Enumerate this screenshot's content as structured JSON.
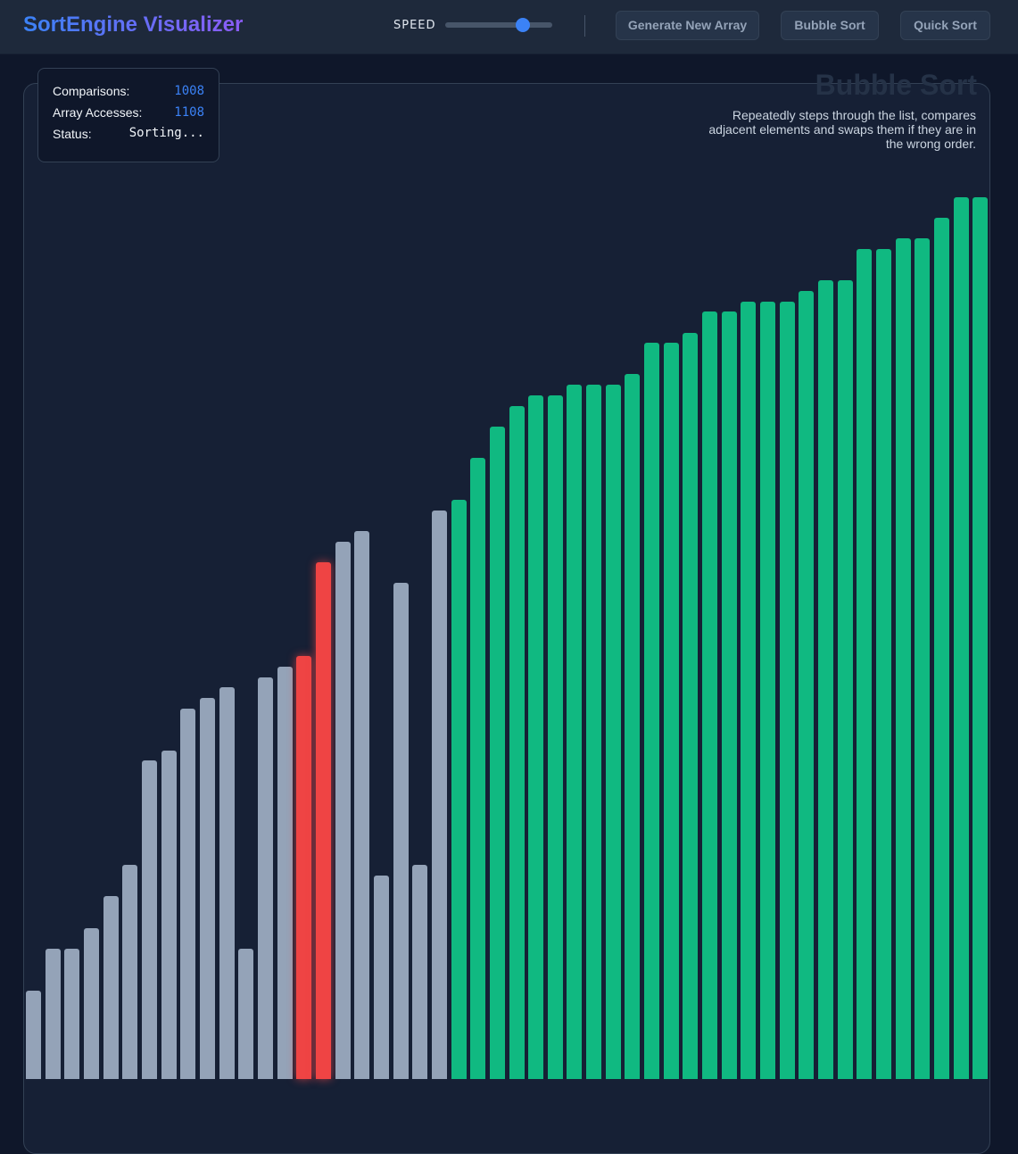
{
  "header": {
    "title": "SortEngine Visualizer",
    "speed_label": "SPEED",
    "speed_value": 0.72,
    "buttons": {
      "generate": "Generate New Array",
      "bubble": "Bubble Sort",
      "quick": "Quick Sort"
    }
  },
  "stats": {
    "comparisons_label": "Comparisons:",
    "comparisons": "1008",
    "accesses_label": "Array Accesses:",
    "accesses": "1108",
    "status_label": "Status:",
    "status": "Sorting..."
  },
  "algorithm": {
    "name": "Bubble Sort",
    "description": "Repeatedly steps through the list, compares adjacent elements and swaps them if they are in the wrong order."
  },
  "colors": {
    "default": "#94a3b8",
    "comparing": "#ef4444",
    "sorted": "#10b981",
    "accent": "#3b82f6"
  },
  "chart_data": {
    "type": "bar",
    "values": [
      9,
      13,
      13,
      15,
      18,
      21,
      31,
      32,
      36,
      37,
      38,
      13,
      39,
      40,
      41,
      50,
      52,
      53,
      20,
      48,
      21,
      55,
      56,
      60,
      63,
      65,
      66,
      66,
      67,
      67,
      67,
      68,
      71,
      71,
      72,
      74,
      74,
      75,
      75,
      75,
      76,
      77,
      77,
      80,
      80,
      81,
      81,
      83,
      85,
      85
    ],
    "comparing": [
      14,
      15
    ],
    "sorted_from": 22
  }
}
